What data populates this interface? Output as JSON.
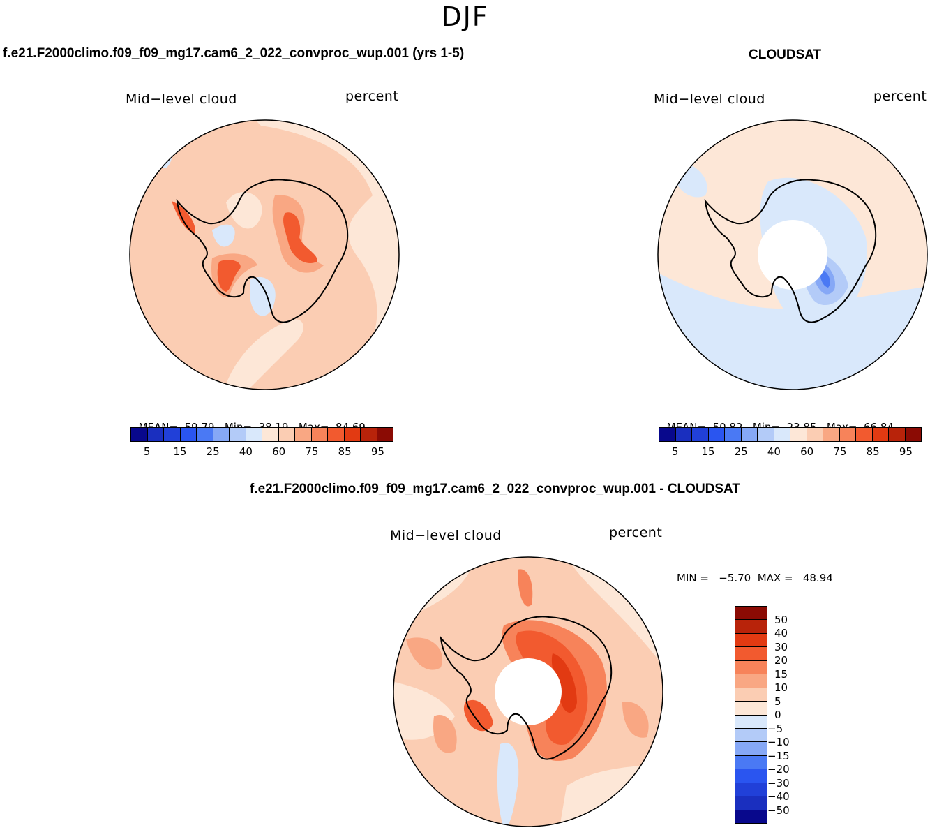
{
  "season": "DJF",
  "panels": {
    "model": {
      "header": "f.e21.F2000climo.f09_f09_mg17.cam6_2_022_convproc_wup.001 (yrs 1-5)",
      "variable": "Mid−level cloud",
      "units": "percent",
      "mean_label": "MEAN=",
      "mean": "59.79",
      "min_label": "Min=",
      "min": "38.19",
      "max_label": "Max=",
      "max": "84.69"
    },
    "obs": {
      "header": "CLOUDSAT",
      "variable": "Mid−level cloud",
      "units": "percent",
      "mean_label": "MEAN=",
      "mean": "50.82",
      "min_label": "Min=",
      "min": "23.85",
      "max_label": "Max=",
      "max": "66.84"
    },
    "diff": {
      "header": "f.e21.F2000climo.f09_f09_mg17.cam6_2_022_convproc_wup.001 - CLOUDSAT",
      "variable": "Mid−level cloud",
      "units": "percent",
      "minmax": "MIN =   −5.70  MAX =   48.94"
    }
  },
  "colorbar_abs": {
    "tick_labels": [
      "5",
      "15",
      "25",
      "40",
      "60",
      "75",
      "85",
      "95"
    ],
    "colors": [
      "#08088c",
      "#1a2fbf",
      "#2140d8",
      "#2a55f0",
      "#4a79f4",
      "#86a8f6",
      "#b3cbf8",
      "#d9e8fb",
      "#fde7d7",
      "#fbcdb3",
      "#f9a783",
      "#f7835a",
      "#f25a2f",
      "#e23a12",
      "#b8230a",
      "#8b0b04"
    ]
  },
  "colorbar_diff": {
    "tick_labels": [
      "50",
      "40",
      "30",
      "20",
      "15",
      "10",
      "5",
      "0",
      "−5",
      "−10",
      "−15",
      "−20",
      "−30",
      "−40",
      "−50"
    ],
    "colors": [
      "#8b0b04",
      "#b8230a",
      "#e23a12",
      "#f25a2f",
      "#f7835a",
      "#f9a783",
      "#fbcdb3",
      "#fde7d7",
      "#d9e8fb",
      "#b3cbf8",
      "#86a8f6",
      "#4a79f4",
      "#2a55f0",
      "#2140d8",
      "#1a2fbf",
      "#08088c"
    ]
  },
  "map_colors": {
    "model_base": "#fbcdb3",
    "model_light": "#fde7d7",
    "model_mid": "#f9a783",
    "model_hot": "#f25a2f",
    "model_cool": "#d9e8fb",
    "obs_base": "#fde7d7",
    "obs_cool": "#d9e8fb",
    "obs_cool2": "#b3cbf8",
    "obs_cool3": "#86a8f6",
    "obs_cool4": "#4a79f4",
    "diff_base": "#fbcdb3",
    "diff_light": "#fde7d7",
    "diff_mid": "#f9a783",
    "diff_hot": "#f7835a",
    "diff_hot2": "#f25a2f",
    "diff_hot3": "#e23a12",
    "diff_cool": "#d9e8fb"
  }
}
